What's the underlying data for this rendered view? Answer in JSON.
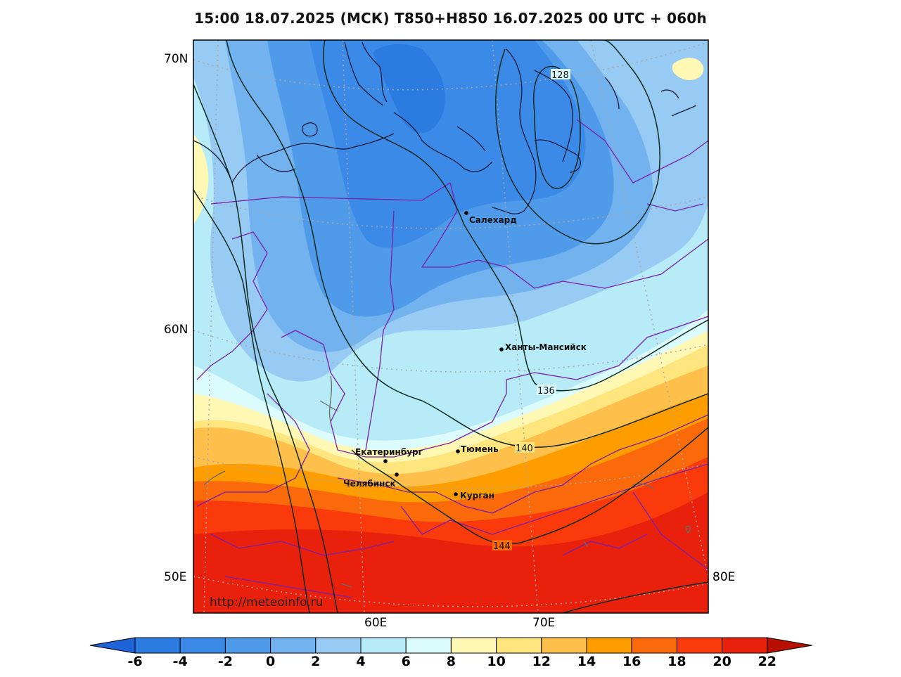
{
  "title": "15:00 18.07.2025 (МСК) T850+H850 16.07.2025 00 UTC + 060h",
  "lat_labels": [
    {
      "text": "70N"
    },
    {
      "text": "60N"
    },
    {
      "text": "50E"
    }
  ],
  "lon_labels": [
    {
      "text": "60E"
    },
    {
      "text": "70E"
    },
    {
      "text": "80E"
    }
  ],
  "cities": [
    {
      "name": "Салехард"
    },
    {
      "name": "Ханты-Мансийск"
    },
    {
      "name": "Екатеринбург"
    },
    {
      "name": "Тюмень"
    },
    {
      "name": "Челябинск"
    },
    {
      "name": "Курган"
    }
  ],
  "contour_labels": [
    "128",
    "136",
    "140",
    "144"
  ],
  "watermark": "http://meteoinfo.ru",
  "colorbar": {
    "ticks": [
      "-6",
      "-4",
      "-2",
      "0",
      "2",
      "4",
      "6",
      "8",
      "10",
      "12",
      "14",
      "16",
      "18",
      "20",
      "22"
    ],
    "colors": [
      "#2b7be0",
      "#3b8ae8",
      "#509be9",
      "#72b2ef",
      "#98cbf3",
      "#b6ebf7",
      "#dcfbfd",
      "#fff8b4",
      "#fee57e",
      "#fec04b",
      "#fd9d00",
      "#fb6a0a",
      "#fa3a0a",
      "#e8200c"
    ],
    "under_color": "#1f63d8",
    "over_color": "#b81000"
  }
}
